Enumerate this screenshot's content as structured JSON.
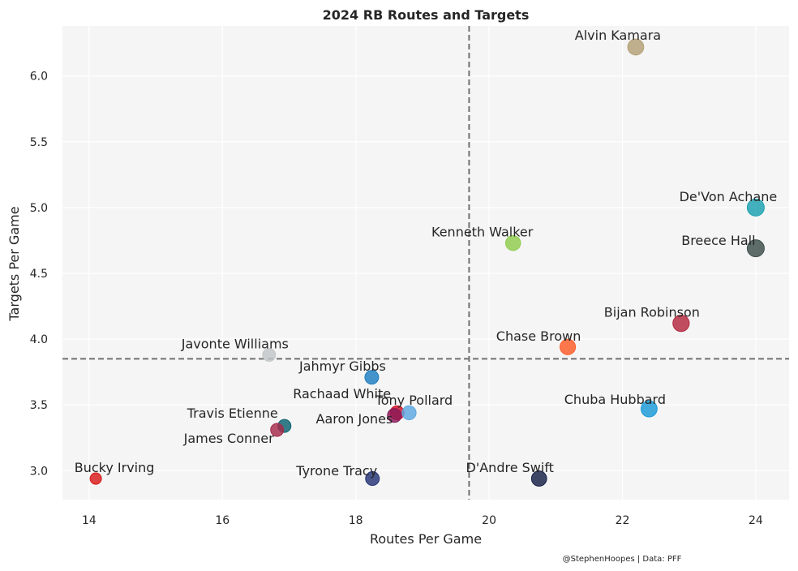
{
  "chart_data": {
    "type": "scatter",
    "title": "2024 RB Routes and Targets",
    "xlabel": "Routes Per Game",
    "ylabel": "Targets Per Game",
    "xlim": [
      13.6,
      24.5
    ],
    "ylim": [
      2.78,
      6.38
    ],
    "xticks": [
      14,
      16,
      18,
      20,
      22,
      24
    ],
    "yticks": [
      3.0,
      3.5,
      4.0,
      4.5,
      5.0,
      5.5,
      6.0
    ],
    "grid": true,
    "reference_lines": {
      "x": 19.7,
      "y": 3.85,
      "style": "dashed"
    },
    "credit": "@StephenHoopes | Data: PFF",
    "points": [
      {
        "name": "Alvin Kamara",
        "x": 22.2,
        "y": 6.22,
        "color": "#b5a075"
      },
      {
        "name": "De'Von Achane",
        "x": 24.0,
        "y": 5.0,
        "color": "#1ba1b0"
      },
      {
        "name": "Breece Hall",
        "x": 24.0,
        "y": 4.69,
        "color": "#3c4e4a"
      },
      {
        "name": "Kenneth Walker",
        "x": 20.36,
        "y": 4.73,
        "color": "#8fcc4c"
      },
      {
        "name": "Bijan Robinson",
        "x": 22.88,
        "y": 4.12,
        "color": "#b3283e"
      },
      {
        "name": "Chase Brown",
        "x": 21.18,
        "y": 3.94,
        "color": "#ff5c28"
      },
      {
        "name": "Javonte Williams",
        "x": 16.7,
        "y": 3.88,
        "color": "#c2c6c9"
      },
      {
        "name": "Jahmyr Gibbs",
        "x": 18.24,
        "y": 3.71,
        "color": "#1d7fc2"
      },
      {
        "name": "Rachaad White",
        "x": 18.62,
        "y": 3.44,
        "color": "#d30f24"
      },
      {
        "name": "Tony Pollard",
        "x": 18.8,
        "y": 3.44,
        "color": "#5ea8e2"
      },
      {
        "name": "Aaron Jones",
        "x": 18.58,
        "y": 3.42,
        "color": "#8a1a58"
      },
      {
        "name": "Travis Etienne",
        "x": 16.93,
        "y": 3.34,
        "color": "#0a6270"
      },
      {
        "name": "James Conner",
        "x": 16.82,
        "y": 3.31,
        "color": "#a62a4a"
      },
      {
        "name": "Chuba Hubbard",
        "x": 22.4,
        "y": 3.47,
        "color": "#1a9ad8"
      },
      {
        "name": "Bucky Irving",
        "x": 14.1,
        "y": 2.94,
        "color": "#d91a1a"
      },
      {
        "name": "Tyrone Tracy",
        "x": 18.25,
        "y": 2.94,
        "color": "#233376"
      },
      {
        "name": "D'Andre Swift",
        "x": 20.75,
        "y": 2.94,
        "color": "#152046"
      }
    ]
  }
}
